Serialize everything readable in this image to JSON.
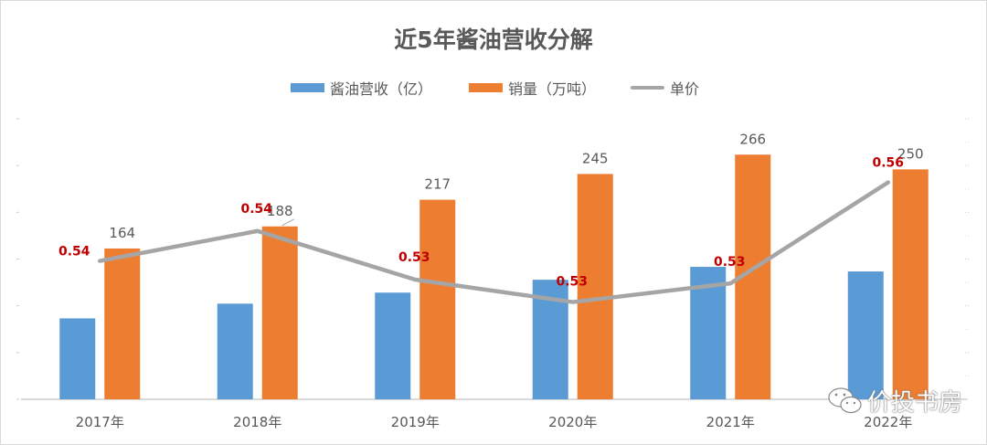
{
  "chart_data": {
    "type": "bar",
    "title": "近5年酱油营收分解",
    "categories": [
      "2017年",
      "2018年",
      "2019年",
      "2020年",
      "2021年",
      "2022年"
    ],
    "series": [
      {
        "name": "酱油营收（亿）",
        "type": "bar",
        "axis": "primary",
        "color": "#5b9bd5",
        "values": [
          88,
          104,
          116,
          130,
          144,
          139
        ]
      },
      {
        "name": "销量（万吨）",
        "type": "bar",
        "axis": "primary",
        "color": "#ed7d31",
        "values": [
          164,
          188,
          217,
          245,
          266,
          250
        ],
        "labels": [
          "164",
          "188",
          "217",
          "245",
          "266",
          "250"
        ]
      },
      {
        "name": "单价",
        "type": "line",
        "axis": "secondary",
        "color": "#a5a5a5",
        "values": [
          0.537,
          0.545,
          0.532,
          0.526,
          0.531,
          0.558
        ],
        "labels": [
          "0.54",
          "0.54",
          "0.53",
          "0.53",
          "0.53",
          "0.56"
        ],
        "label_color": "#c00000"
      }
    ],
    "ylim": [
      0,
      305
    ],
    "y2lim": [
      0.5,
      0.575
    ],
    "axes_labels_visible": false,
    "grid": false,
    "legend": "top"
  },
  "watermark": {
    "icon": "wechat-icon",
    "text": "价投书房"
  }
}
